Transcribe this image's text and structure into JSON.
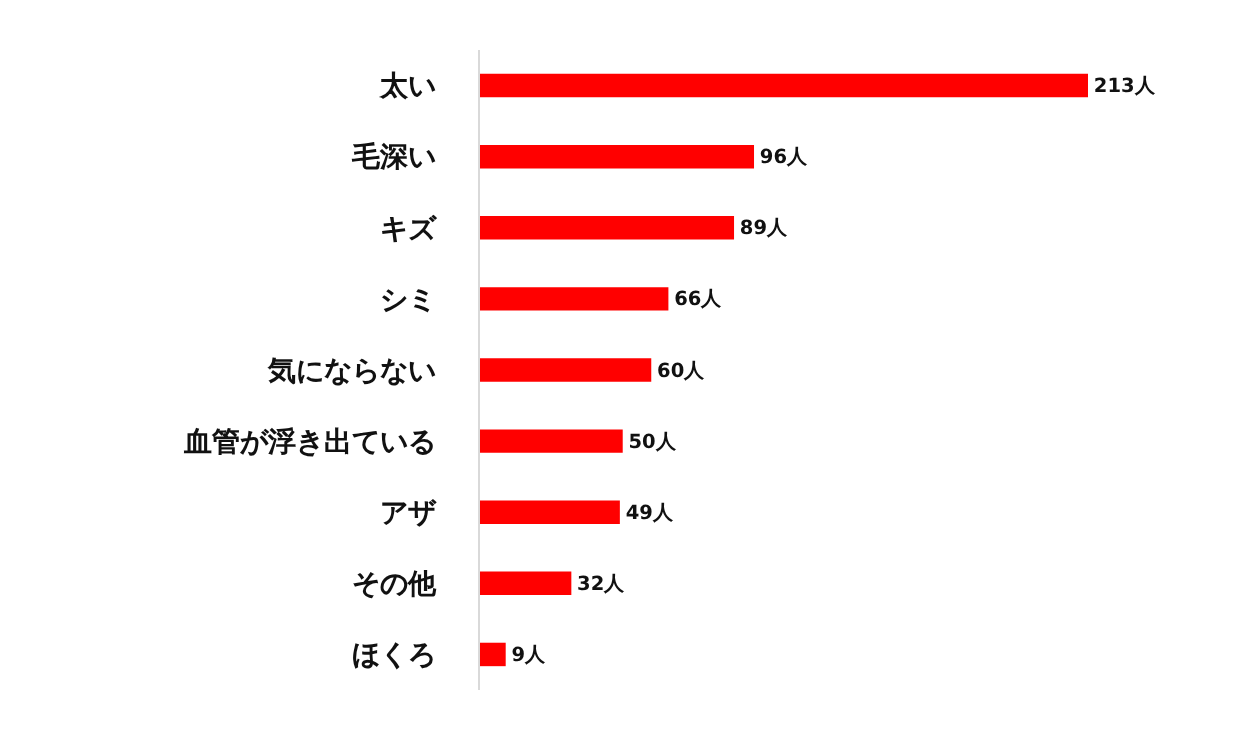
{
  "chart_data": {
    "type": "bar",
    "orientation": "horizontal",
    "categories": [
      "太い",
      "毛深い",
      "キズ",
      "シミ",
      "気にならない",
      "血管が浮き出ている",
      "アザ",
      "その他",
      "ほくろ"
    ],
    "values": [
      213,
      96,
      89,
      66,
      60,
      50,
      49,
      32,
      9
    ],
    "value_labels": [
      "213人",
      "96人",
      "89人",
      "66人",
      "60人",
      "50人",
      "49人",
      "32人",
      "9人"
    ],
    "color": "#ff0000",
    "tick_labels": "y"
  }
}
